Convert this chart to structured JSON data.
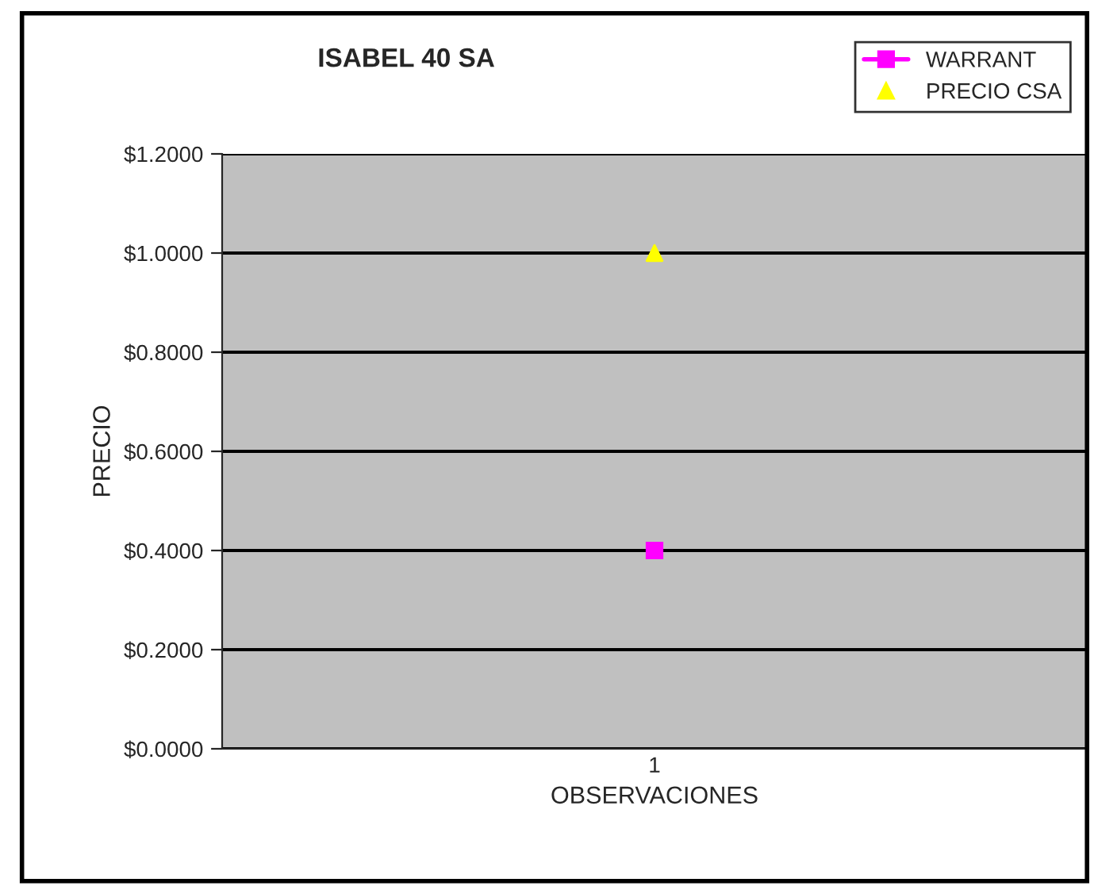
{
  "chart_data": {
    "type": "scatter",
    "title": "ISABEL 40 SA",
    "xlabel": "OBSERVACIONES",
    "ylabel": "PRECIO",
    "categories": [
      "1"
    ],
    "series": [
      {
        "name": "WARRANT",
        "type": "line",
        "color": "#ff00ff",
        "marker": "square",
        "values": [
          0.4
        ]
      },
      {
        "name": "PRECIO CSA",
        "color": "#ffff00",
        "marker": "triangle",
        "values": [
          1.0
        ]
      }
    ],
    "ylim": [
      0,
      1.2
    ],
    "yticks": [
      {
        "value": 0,
        "label": "$0.0000"
      },
      {
        "value": 0.2,
        "label": "$0.2000"
      },
      {
        "value": 0.4,
        "label": "$0.4000"
      },
      {
        "value": 0.6,
        "label": "$0.6000"
      },
      {
        "value": 0.8,
        "label": "$0.8000"
      },
      {
        "value": 1.0,
        "label": "$1.0000"
      },
      {
        "value": 1.2,
        "label": "$1.2000"
      }
    ],
    "grid": "y",
    "legend": "top right"
  }
}
